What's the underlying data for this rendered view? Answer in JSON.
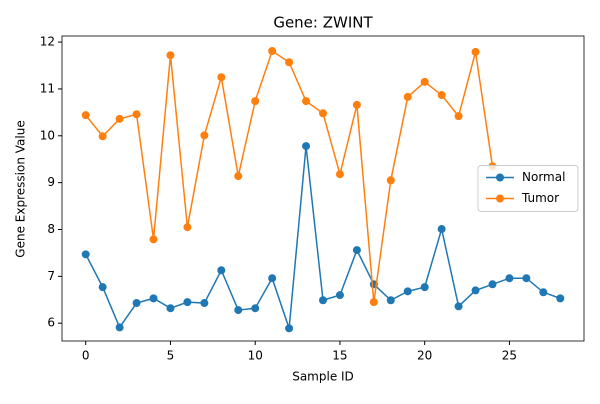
{
  "chart_data": {
    "type": "line",
    "title": "Gene: ZWINT",
    "xlabel": "Sample ID",
    "ylabel": "Gene Expression Value",
    "x": [
      0,
      1,
      2,
      3,
      4,
      5,
      6,
      7,
      8,
      9,
      10,
      11,
      12,
      13,
      14,
      15,
      16,
      17,
      18,
      19,
      20,
      21,
      22,
      23,
      24,
      25,
      26,
      27,
      28
    ],
    "series": [
      {
        "name": "Normal",
        "color": "#1f77b4",
        "values": [
          7.47,
          6.77,
          5.91,
          6.43,
          6.53,
          6.32,
          6.45,
          6.43,
          7.13,
          6.28,
          6.32,
          6.96,
          5.89,
          9.78,
          6.49,
          6.6,
          7.56,
          6.83,
          6.49,
          6.68,
          6.77,
          8.01,
          6.36,
          6.7,
          6.83,
          6.96,
          6.96,
          6.66,
          6.53
        ]
      },
      {
        "name": "Tumor",
        "color": "#ff7f0e",
        "values": [
          10.44,
          9.99,
          10.36,
          10.46,
          7.79,
          11.72,
          8.05,
          10.01,
          11.25,
          9.14,
          10.74,
          11.81,
          11.57,
          10.74,
          10.48,
          9.18,
          10.66,
          6.45,
          9.05,
          10.83,
          11.15,
          10.87,
          10.42,
          11.79,
          9.35,
          null,
          null,
          null,
          null
        ]
      }
    ],
    "xlim": [
      -1.4,
      29.4
    ],
    "xticks": [
      0,
      5,
      10,
      15,
      20,
      25
    ],
    "ylim": [
      5.62,
      12.13
    ],
    "yticks": [
      6,
      7,
      8,
      9,
      10,
      11,
      12
    ],
    "grid": false,
    "legend": "center right"
  }
}
